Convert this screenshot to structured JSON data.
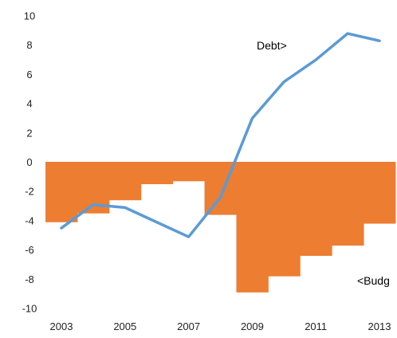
{
  "chart_data": {
    "type": "bar",
    "title": "",
    "xlabel": "",
    "ylabel": "",
    "ylim": [
      -10,
      10
    ],
    "yticks": [
      10,
      8,
      6,
      4,
      2,
      0,
      -2,
      -4,
      -6,
      -8,
      -10
    ],
    "xlim": [
      2002.5,
      2013.5
    ],
    "xticks": [
      2003,
      2005,
      2007,
      2009,
      2011,
      2013
    ],
    "grid": false,
    "legend": "none",
    "annotations": [
      "Debt>",
      "<Budg"
    ],
    "series": [
      {
        "type": "bar",
        "x": [
          2003,
          2004,
          2005,
          2006,
          2007,
          2008,
          2009,
          2010,
          2011,
          2012,
          2013
        ],
        "values": [
          -4.1,
          -3.5,
          -2.6,
          -1.5,
          -1.3,
          -3.6,
          -8.9,
          -7.8,
          -6.4,
          -5.7,
          -4.2
        ],
        "color": "#ED7D31"
      },
      {
        "type": "line",
        "x": [
          2003,
          2004,
          2005,
          2006,
          2007,
          2008,
          2009,
          2010,
          2011,
          2012,
          2013
        ],
        "values": [
          -4.5,
          -2.9,
          -3.1,
          -4.1,
          -5.1,
          -2.4,
          3.0,
          5.5,
          7.0,
          8.8,
          8.3
        ],
        "color": "#5B9BD5"
      }
    ]
  }
}
